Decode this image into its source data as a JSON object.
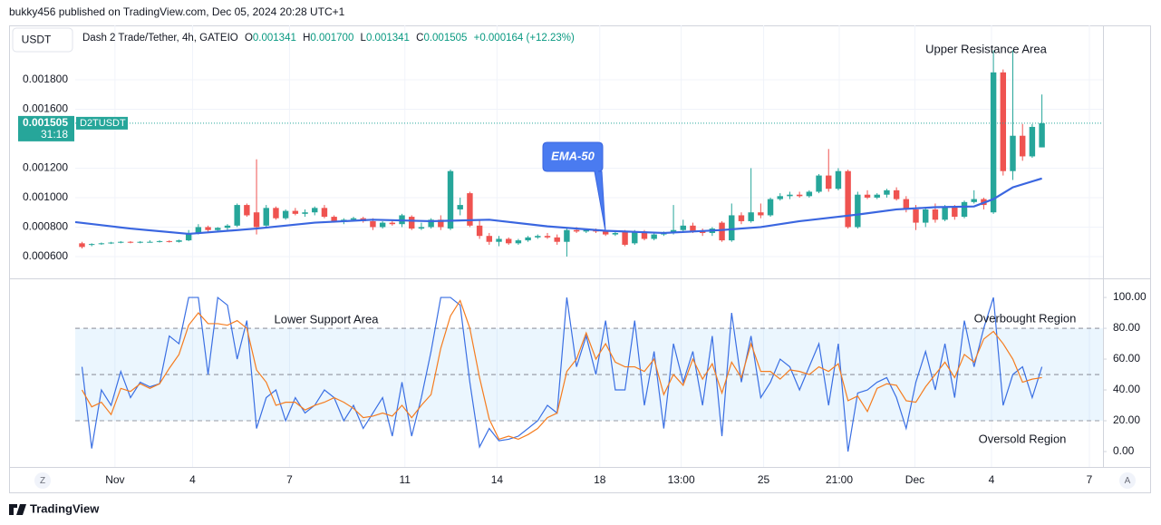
{
  "publish_line": "bukky456 published on TradingView.com, Dec 05, 2024 20:28 UTC+1",
  "footer_brand": "TradingView",
  "chart_data": [
    {
      "type": "candlestick",
      "currency_button": "USDT",
      "title": "Dash 2 Trade/Tether, 4h, GATEIO",
      "ohlc_labels": [
        "O",
        "H",
        "L",
        "C"
      ],
      "ohlc": [
        0.001341,
        0.0017,
        0.001341,
        0.001505
      ],
      "ohlc_labels_printed": [
        "0.001341",
        "0.001700",
        "0.001341",
        "0.001505"
      ],
      "change": "+0.000164 (+12.23%)",
      "last_price": 0.001505,
      "countdown": "31:18",
      "symbol_tag": "D2TUSDT",
      "up_color": "#26a69a",
      "down_color": "#ef5350",
      "grid": true,
      "xlim": [
        -0.7,
        105.3
      ],
      "xticks": [
        {
          "value": 3.4,
          "label": "Nov"
        },
        {
          "value": 11.4,
          "label": "4"
        },
        {
          "value": 21.4,
          "label": "7"
        },
        {
          "value": 33.3,
          "label": "11"
        },
        {
          "value": 42.8,
          "label": "14"
        },
        {
          "value": 53.4,
          "label": "18"
        },
        {
          "value": 61.8,
          "label": "13:00"
        },
        {
          "value": 70.3,
          "label": "25"
        },
        {
          "value": 78.1,
          "label": "21:00"
        },
        {
          "value": 85.9,
          "label": "Dec"
        },
        {
          "value": 93.8,
          "label": "4"
        },
        {
          "value": 103.9,
          "label": "7"
        }
      ],
      "ylim": [
        0.000452,
        0.002169
      ],
      "yticks": [
        {
          "value": 0.0006,
          "label": "0.000600"
        },
        {
          "value": 0.0008,
          "label": "0.000800"
        },
        {
          "value": 0.001,
          "label": "0.001000"
        },
        {
          "value": 0.0012,
          "label": "0.001200"
        },
        {
          "value": 0.0016,
          "label": "0.001600"
        },
        {
          "value": 0.0018,
          "label": "0.001800"
        }
      ],
      "candles": [
        [
          0.00069,
          0.0007,
          0.000655,
          0.000665
        ],
        [
          0.00068,
          0.00069,
          0.00067,
          0.000685
        ],
        [
          0.000685,
          0.000695,
          0.00068,
          0.00069
        ],
        [
          0.00069,
          0.0007,
          0.000685,
          0.000695
        ],
        [
          0.000695,
          0.000705,
          0.00069,
          0.0007
        ],
        [
          0.0007,
          0.000705,
          0.00069,
          0.000695
        ],
        [
          0.000695,
          0.000705,
          0.00069,
          0.0007
        ],
        [
          0.0007,
          0.00071,
          0.000695,
          0.0007
        ],
        [
          0.0007,
          0.00071,
          0.000695,
          0.000705
        ],
        [
          0.000705,
          0.00071,
          0.000695,
          0.0007
        ],
        [
          0.0007,
          0.000715,
          0.000695,
          0.00071
        ],
        [
          0.00071,
          0.00078,
          0.000705,
          0.00076
        ],
        [
          0.00076,
          0.00082,
          0.00075,
          0.0008
        ],
        [
          0.0008,
          0.00081,
          0.00076,
          0.00078
        ],
        [
          0.00078,
          0.0008,
          0.00077,
          0.000795
        ],
        [
          0.000795,
          0.00082,
          0.00078,
          0.00081
        ],
        [
          0.00081,
          0.00096,
          0.0008,
          0.00095
        ],
        [
          0.00095,
          0.00096,
          0.00087,
          0.00088
        ],
        [
          0.0009,
          0.00126,
          0.00075,
          0.0008
        ],
        [
          0.00081,
          0.00095,
          0.0008,
          0.00093
        ],
        [
          0.00093,
          0.00094,
          0.00085,
          0.00086
        ],
        [
          0.00086,
          0.00092,
          0.00085,
          0.00091
        ],
        [
          0.00091,
          0.00093,
          0.00088,
          0.00089
        ],
        [
          0.00089,
          0.00092,
          0.00087,
          0.0009
        ],
        [
          0.0009,
          0.00094,
          0.00088,
          0.00093
        ],
        [
          0.00093,
          0.00095,
          0.00086,
          0.00087
        ],
        [
          0.00087,
          0.00088,
          0.00083,
          0.00084
        ],
        [
          0.00084,
          0.00086,
          0.00082,
          0.00085
        ],
        [
          0.00085,
          0.00087,
          0.00084,
          0.00086
        ],
        [
          0.00086,
          0.00087,
          0.00083,
          0.00084
        ],
        [
          0.00084,
          0.00086,
          0.00078,
          0.0008
        ],
        [
          0.0008,
          0.00084,
          0.00079,
          0.00083
        ],
        [
          0.00083,
          0.00085,
          0.00081,
          0.00082
        ],
        [
          0.00082,
          0.00089,
          0.0008,
          0.00088
        ],
        [
          0.00087,
          0.00088,
          0.00078,
          0.00079
        ],
        [
          0.00079,
          0.00083,
          0.00078,
          0.0008
        ],
        [
          0.0008,
          0.00086,
          0.00079,
          0.00085
        ],
        [
          0.00085,
          0.00088,
          0.00078,
          0.0008
        ],
        [
          0.00079,
          0.00119,
          0.00078,
          0.00118
        ],
        [
          0.00092,
          0.001,
          0.00088,
          0.00095
        ],
        [
          0.00103,
          0.00104,
          0.0008,
          0.00081
        ],
        [
          0.00081,
          0.00085,
          0.00072,
          0.00074
        ],
        [
          0.00074,
          0.00076,
          0.00068,
          0.0007
        ],
        [
          0.0007,
          0.00074,
          0.00067,
          0.00072
        ],
        [
          0.00072,
          0.00073,
          0.00068,
          0.00069
        ],
        [
          0.00069,
          0.00072,
          0.00068,
          0.00071
        ],
        [
          0.00071,
          0.00074,
          0.0007,
          0.00073
        ],
        [
          0.00073,
          0.00075,
          0.00072,
          0.00074
        ],
        [
          0.00074,
          0.00076,
          0.00072,
          0.00073
        ],
        [
          0.00073,
          0.00075,
          0.00068,
          0.0007
        ],
        [
          0.0007,
          0.0008,
          0.0006,
          0.00078
        ],
        [
          0.00078,
          0.0008,
          0.00076,
          0.00077
        ],
        [
          0.00077,
          0.00079,
          0.00076,
          0.00078
        ],
        [
          0.00078,
          0.00079,
          0.00076,
          0.00077
        ],
        [
          0.00077,
          0.00078,
          0.00074,
          0.00075
        ],
        [
          0.00075,
          0.00077,
          0.00074,
          0.00076
        ],
        [
          0.00077,
          0.00078,
          0.00067,
          0.00068
        ],
        [
          0.00069,
          0.00078,
          0.00068,
          0.00077
        ],
        [
          0.00077,
          0.00078,
          0.00071,
          0.00072
        ],
        [
          0.00072,
          0.00076,
          0.00071,
          0.00075
        ],
        [
          0.00075,
          0.00077,
          0.00074,
          0.00076
        ],
        [
          0.00076,
          0.00095,
          0.00075,
          0.00078
        ],
        [
          0.00078,
          0.00085,
          0.00077,
          0.00081
        ],
        [
          0.00081,
          0.00083,
          0.00076,
          0.00077
        ],
        [
          0.00077,
          0.00079,
          0.00074,
          0.00076
        ],
        [
          0.00076,
          0.0008,
          0.00074,
          0.00079
        ],
        [
          0.00083,
          0.00084,
          0.0007,
          0.00071
        ],
        [
          0.00071,
          0.00096,
          0.0007,
          0.00088
        ],
        [
          0.00088,
          0.0009,
          0.00082,
          0.00084
        ],
        [
          0.00084,
          0.0012,
          0.00083,
          0.0009
        ],
        [
          0.0009,
          0.00096,
          0.00086,
          0.00088
        ],
        [
          0.00088,
          0.001,
          0.00087,
          0.00099
        ],
        [
          0.00099,
          0.00103,
          0.00098,
          0.00101
        ],
        [
          0.00101,
          0.00104,
          0.00099,
          0.00102
        ],
        [
          0.00102,
          0.00104,
          0.001,
          0.00101
        ],
        [
          0.00101,
          0.00105,
          0.001,
          0.00104
        ],
        [
          0.00104,
          0.00116,
          0.00103,
          0.00115
        ],
        [
          0.00115,
          0.00133,
          0.00104,
          0.00106
        ],
        [
          0.00106,
          0.0012,
          0.00105,
          0.00118
        ],
        [
          0.00118,
          0.00119,
          0.00079,
          0.0008
        ],
        [
          0.0008,
          0.00104,
          0.00079,
          0.00102
        ],
        [
          0.00102,
          0.00105,
          0.00099,
          0.001
        ],
        [
          0.001,
          0.00103,
          0.00099,
          0.00102
        ],
        [
          0.00102,
          0.00106,
          0.001,
          0.00105
        ],
        [
          0.00105,
          0.00107,
          0.00098,
          0.00099
        ],
        [
          0.00099,
          0.00101,
          0.0009,
          0.00092
        ],
        [
          0.00092,
          0.00095,
          0.00078,
          0.00083
        ],
        [
          0.00083,
          0.00093,
          0.0008,
          0.00092
        ],
        [
          0.00092,
          0.00096,
          0.00083,
          0.00085
        ],
        [
          0.00085,
          0.00095,
          0.00084,
          0.00094
        ],
        [
          0.00094,
          0.00095,
          0.00085,
          0.00087
        ],
        [
          0.00087,
          0.00098,
          0.00086,
          0.00097
        ],
        [
          0.00097,
          0.00105,
          0.00096,
          0.00099
        ],
        [
          0.00099,
          0.001,
          0.00092,
          0.00095
        ],
        [
          0.0009,
          0.002,
          0.00089,
          0.00185
        ],
        [
          0.00185,
          0.00187,
          0.00115,
          0.00118
        ],
        [
          0.00118,
          0.002,
          0.00112,
          0.00142
        ],
        [
          0.00142,
          0.0015,
          0.00125,
          0.00128
        ],
        [
          0.00128,
          0.0015,
          0.00127,
          0.00148
        ],
        [
          0.001341,
          0.0017,
          0.001341,
          0.001505
        ]
      ],
      "series": [
        {
          "name": "EMA-50",
          "color": "#3a66e0",
          "x": [
            -0.7,
            5,
            11,
            18,
            24,
            30,
            36,
            42,
            48,
            54,
            60,
            66,
            70,
            74,
            78,
            80,
            84,
            88,
            92,
            94,
            96,
            99
          ],
          "values": [
            0.000834,
            0.00079,
            0.000754,
            0.00079,
            0.00083,
            0.00085,
            0.00084,
            0.00085,
            0.000805,
            0.000775,
            0.00076,
            0.00078,
            0.0008,
            0.00084,
            0.00087,
            0.000885,
            0.00092,
            0.000935,
            0.00094,
            0.00099,
            0.00107,
            0.00113
          ]
        }
      ],
      "annotations": [
        "Upper Resistance Area"
      ]
    },
    {
      "type": "line",
      "ylim": [
        -10,
        112.4
      ],
      "yticks": [
        {
          "value": 0,
          "label": "0.00"
        },
        {
          "value": 20,
          "label": "20.00"
        },
        {
          "value": 40,
          "label": "40.00"
        },
        {
          "value": 60,
          "label": "60.00"
        },
        {
          "value": 80,
          "label": "80.00"
        },
        {
          "value": 100,
          "label": "100.00"
        }
      ],
      "bands": [
        20,
        50,
        80
      ],
      "band_color": "rgba(33,150,243,0.09)",
      "series": [
        {
          "color": "#3a6fe3",
          "values": [
            55,
            2,
            40,
            30,
            52,
            35,
            45,
            42,
            44,
            75,
            70,
            100,
            100,
            50,
            100,
            95,
            60,
            85,
            15,
            35,
            40,
            20,
            35,
            25,
            30,
            40,
            35,
            20,
            30,
            15,
            25,
            35,
            10,
            45,
            10,
            35,
            65,
            100,
            100,
            95,
            45,
            3,
            15,
            7,
            8,
            10,
            15,
            20,
            30,
            25,
            100,
            55,
            75,
            50,
            85,
            40,
            40,
            85,
            30,
            65,
            15,
            70,
            45,
            65,
            30,
            75,
            10,
            90,
            45,
            75,
            35,
            45,
            60,
            55,
            40,
            55,
            70,
            30,
            70,
            0,
            38,
            40,
            45,
            48,
            35,
            15,
            45,
            65,
            40,
            70,
            35,
            85,
            55,
            80,
            100,
            30,
            50,
            55,
            35,
            55
          ]
        },
        {
          "color": "#f57c1f",
          "values": [
            40,
            29,
            32,
            24,
            41,
            39,
            44,
            41,
            44,
            54,
            63,
            82,
            90,
            83,
            83,
            82,
            85,
            80,
            53,
            45,
            30,
            32,
            32,
            27,
            30,
            32,
            35,
            32,
            28,
            22,
            23,
            25,
            23,
            30,
            22,
            30,
            37,
            67,
            88,
            98,
            80,
            48,
            21,
            8,
            10,
            8,
            11,
            15,
            22,
            25,
            52,
            60,
            77,
            60,
            70,
            58,
            55,
            55,
            52,
            60,
            37,
            50,
            43,
            60,
            47,
            57,
            38,
            58,
            48,
            70,
            52,
            52,
            47,
            53,
            52,
            50,
            55,
            52,
            57,
            33,
            36,
            26,
            41,
            44,
            43,
            33,
            32,
            42,
            50,
            58,
            48,
            63,
            58,
            73,
            78,
            70,
            60,
            45,
            47,
            48
          ]
        }
      ],
      "annotations": [
        "Lower Support Area",
        "Overbought Region",
        "Oversold Region"
      ]
    }
  ],
  "ema_callout": "EMA-50",
  "scale_buttons": [
    "Z",
    "A"
  ]
}
